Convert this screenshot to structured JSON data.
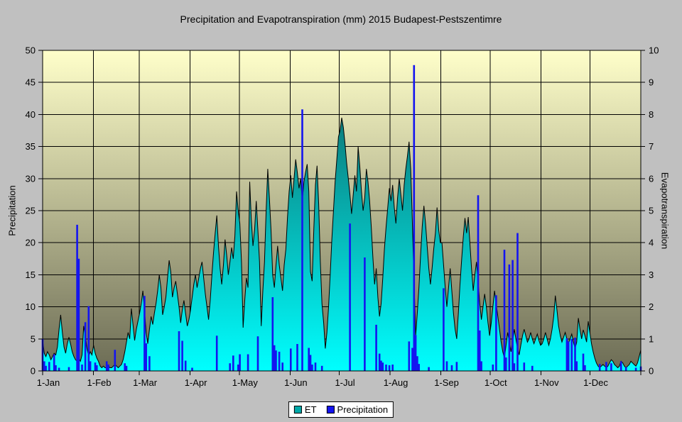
{
  "chart_data": {
    "type": "area+bar",
    "title": "Precipitation and Evapotranspiration (mm) 2015 Budapest-Pestszentimre",
    "left_axis": {
      "title": "Precipitation",
      "min": 0,
      "max": 50,
      "step": 5,
      "ticks": [
        0,
        5,
        10,
        15,
        20,
        25,
        30,
        35,
        40,
        45,
        50
      ]
    },
    "right_axis": {
      "title": "Evapotranspiration",
      "min": 0,
      "max": 10,
      "step": 1,
      "ticks": [
        0,
        1,
        2,
        3,
        4,
        5,
        6,
        7,
        8,
        9,
        10
      ]
    },
    "x_axis": {
      "labels": [
        "1-Jan",
        "1-Feb",
        "1-Mar",
        "1-Apr",
        "1-May",
        "1-Jun",
        "1-Jul",
        "1-Aug",
        "1-Sep",
        "1-Oct",
        "1-Nov",
        "1-Dec"
      ],
      "month_start_days": [
        0,
        31,
        59,
        90,
        120,
        151,
        181,
        212,
        243,
        273,
        304,
        334
      ],
      "days_in_year": 365
    },
    "legend": [
      {
        "label": "ET",
        "color": "#00a9a9"
      },
      {
        "label": "Precipitation",
        "color": "#1414f0"
      }
    ],
    "colors": {
      "page_bg": "#c0c0c0",
      "plot_bg_top": "#ffffca",
      "plot_bg_bottom": "#6c6c55",
      "grid": "#000000",
      "frame": "#000000",
      "et_fill_top": "#0f5a5a",
      "et_fill_bottom": "#00ffff",
      "et_outline": "#000000",
      "bar_fill": "#1414f0"
    },
    "series": [
      {
        "name": "ET",
        "axis": "right",
        "type": "area",
        "daily_values": [
          0.95,
          0.55,
          0.45,
          0.6,
          0.5,
          0.35,
          0.45,
          0.55,
          0.5,
          0.75,
          1.3,
          1.75,
          1.2,
          0.75,
          0.55,
          0.85,
          1.05,
          0.85,
          0.6,
          0.45,
          0.35,
          0.3,
          0.4,
          0.3,
          0.5,
          1.4,
          1.1,
          0.7,
          0.45,
          0.6,
          0.5,
          0.8,
          0.55,
          0.4,
          0.3,
          0.15,
          0.1,
          0.15,
          0.1,
          0.1,
          0.15,
          0.1,
          0.1,
          0.15,
          0.2,
          0.15,
          0.1,
          0.15,
          0.2,
          0.35,
          0.6,
          0.9,
          1.2,
          1.0,
          1.95,
          1.45,
          0.95,
          1.3,
          1.55,
          1.8,
          2.1,
          2.5,
          1.9,
          1.2,
          0.85,
          1.3,
          1.7,
          1.45,
          1.8,
          2.1,
          2.5,
          3.0,
          2.6,
          1.75,
          2.0,
          2.3,
          2.9,
          3.45,
          3.1,
          2.3,
          2.6,
          2.8,
          2.4,
          2.0,
          1.5,
          1.9,
          2.2,
          1.8,
          1.4,
          1.6,
          1.9,
          2.3,
          2.7,
          3.0,
          2.6,
          2.9,
          3.2,
          3.4,
          2.9,
          2.4,
          2.0,
          1.6,
          2.2,
          3.0,
          3.7,
          4.3,
          4.85,
          3.9,
          3.2,
          2.7,
          3.3,
          4.1,
          3.6,
          3.0,
          3.4,
          3.85,
          3.5,
          4.2,
          5.6,
          5.0,
          4.6,
          3.4,
          1.35,
          2.2,
          2.9,
          2.6,
          5.9,
          4.7,
          3.9,
          4.4,
          5.3,
          4.4,
          3.4,
          1.4,
          2.5,
          3.4,
          5.0,
          6.3,
          5.4,
          4.4,
          3.0,
          2.6,
          3.3,
          3.9,
          3.3,
          2.9,
          2.5,
          3.3,
          3.8,
          4.8,
          5.6,
          6.1,
          5.4,
          6.0,
          6.6,
          6.2,
          5.7,
          6.0,
          5.3,
          5.9,
          6.2,
          6.45,
          5.6,
          3.1,
          2.8,
          4.4,
          5.8,
          6.4,
          5.2,
          3.4,
          2.1,
          1.5,
          0.7,
          1.2,
          2.0,
          3.0,
          4.1,
          5.0,
          5.9,
          6.6,
          7.3,
          7.5,
          7.9,
          7.6,
          7.1,
          6.5,
          6.0,
          5.5,
          4.9,
          5.5,
          6.1,
          5.6,
          7.0,
          6.4,
          5.6,
          5.0,
          5.4,
          6.3,
          5.9,
          5.3,
          4.5,
          3.5,
          2.7,
          3.2,
          2.3,
          1.7,
          2.1,
          2.9,
          3.8,
          4.5,
          5.1,
          5.7,
          5.3,
          5.8,
          5.1,
          4.6,
          5.4,
          6.0,
          5.5,
          5.0,
          5.8,
          6.3,
          6.7,
          7.15,
          6.3,
          4.6,
          2.8,
          1.1,
          1.8,
          2.6,
          3.6,
          4.5,
          5.15,
          4.6,
          3.9,
          3.2,
          2.7,
          3.2,
          3.8,
          4.3,
          5.1,
          4.4,
          4.0,
          4.0,
          3.3,
          2.6,
          2.0,
          2.6,
          3.2,
          2.5,
          1.8,
          1.3,
          1.0,
          1.8,
          2.7,
          3.5,
          4.2,
          4.77,
          4.3,
          4.8,
          4.0,
          3.2,
          2.5,
          3.0,
          3.4,
          2.8,
          2.1,
          1.6,
          2.0,
          2.4,
          2.0,
          1.5,
          1.1,
          1.5,
          2.0,
          2.5,
          2.1,
          1.7,
          1.3,
          0.9,
          0.6,
          0.4,
          0.8,
          1.2,
          0.9,
          0.6,
          0.9,
          1.3,
          1.0,
          0.7,
          0.5,
          0.8,
          1.1,
          1.3,
          1.1,
          0.9,
          1.0,
          1.2,
          1.0,
          0.85,
          1.0,
          1.15,
          0.95,
          0.8,
          0.85,
          1.0,
          1.2,
          1.0,
          0.8,
          1.0,
          1.3,
          1.7,
          2.35,
          1.9,
          1.4,
          1.1,
          0.9,
          1.05,
          1.2,
          1.0,
          0.85,
          1.0,
          1.15,
          0.9,
          0.7,
          0.9,
          1.65,
          1.3,
          1.0,
          1.28,
          1.1,
          0.9,
          1.55,
          1.2,
          0.85,
          0.6,
          0.4,
          0.25,
          0.15,
          0.1,
          0.15,
          0.2,
          0.15,
          0.1,
          0.15,
          0.25,
          0.35,
          0.3,
          0.2,
          0.15,
          0.1,
          0.15,
          0.3,
          0.25,
          0.15,
          0.1,
          0.15,
          0.2,
          0.3,
          0.25,
          0.2,
          0.15,
          0.25,
          0.45,
          0.65
        ]
      },
      {
        "name": "Precipitation",
        "axis": "left",
        "type": "bar",
        "events": [
          {
            "day": 1,
            "value": 5.0
          },
          {
            "day": 2,
            "value": 1.5
          },
          {
            "day": 3,
            "value": 0.8
          },
          {
            "day": 5,
            "value": 1.4
          },
          {
            "day": 8,
            "value": 2.6
          },
          {
            "day": 9,
            "value": 0.9
          },
          {
            "day": 11,
            "value": 0.5
          },
          {
            "day": 17,
            "value": 0.6
          },
          {
            "day": 22,
            "value": 22.8
          },
          {
            "day": 23,
            "value": 17.5
          },
          {
            "day": 25,
            "value": 1.0
          },
          {
            "day": 27,
            "value": 7.6
          },
          {
            "day": 29,
            "value": 10.1
          },
          {
            "day": 30,
            "value": 1.5
          },
          {
            "day": 33,
            "value": 1.3
          },
          {
            "day": 34,
            "value": 0.9
          },
          {
            "day": 40,
            "value": 1.5
          },
          {
            "day": 41,
            "value": 1.0
          },
          {
            "day": 45,
            "value": 3.3
          },
          {
            "day": 51,
            "value": 1.2
          },
          {
            "day": 52,
            "value": 0.8
          },
          {
            "day": 63,
            "value": 11.7
          },
          {
            "day": 64,
            "value": 4.3
          },
          {
            "day": 66,
            "value": 2.3
          },
          {
            "day": 84,
            "value": 6.2
          },
          {
            "day": 86,
            "value": 4.7
          },
          {
            "day": 88,
            "value": 1.6
          },
          {
            "day": 92,
            "value": 0.5
          },
          {
            "day": 107,
            "value": 5.5
          },
          {
            "day": 115,
            "value": 1.2
          },
          {
            "day": 117,
            "value": 2.4
          },
          {
            "day": 120,
            "value": 1.0
          },
          {
            "day": 121,
            "value": 2.6
          },
          {
            "day": 126,
            "value": 2.6
          },
          {
            "day": 132,
            "value": 5.4
          },
          {
            "day": 141,
            "value": 11.5
          },
          {
            "day": 142,
            "value": 4.0
          },
          {
            "day": 143,
            "value": 3.2
          },
          {
            "day": 145,
            "value": 3.0
          },
          {
            "day": 147,
            "value": 1.3
          },
          {
            "day": 152,
            "value": 3.5
          },
          {
            "day": 156,
            "value": 4.2
          },
          {
            "day": 159,
            "value": 40.8
          },
          {
            "day": 163,
            "value": 3.6
          },
          {
            "day": 164,
            "value": 2.5
          },
          {
            "day": 165,
            "value": 1.0
          },
          {
            "day": 167,
            "value": 1.3
          },
          {
            "day": 171,
            "value": 0.8
          },
          {
            "day": 188,
            "value": 23.0
          },
          {
            "day": 197,
            "value": 17.7
          },
          {
            "day": 204,
            "value": 7.2
          },
          {
            "day": 206,
            "value": 2.7
          },
          {
            "day": 207,
            "value": 1.6
          },
          {
            "day": 208,
            "value": 1.3
          },
          {
            "day": 210,
            "value": 1.0
          },
          {
            "day": 212,
            "value": 0.9
          },
          {
            "day": 214,
            "value": 1.0
          },
          {
            "day": 224,
            "value": 4.6
          },
          {
            "day": 226,
            "value": 3.6
          },
          {
            "day": 227,
            "value": 47.7
          },
          {
            "day": 228,
            "value": 5.6
          },
          {
            "day": 229,
            "value": 2.3
          },
          {
            "day": 230,
            "value": 1.1
          },
          {
            "day": 236,
            "value": 0.6
          },
          {
            "day": 245,
            "value": 12.9
          },
          {
            "day": 247,
            "value": 1.5
          },
          {
            "day": 250,
            "value": 0.9
          },
          {
            "day": 253,
            "value": 1.4
          },
          {
            "day": 266,
            "value": 27.4
          },
          {
            "day": 267,
            "value": 6.3
          },
          {
            "day": 268,
            "value": 1.5
          },
          {
            "day": 275,
            "value": 1.0
          },
          {
            "day": 277,
            "value": 11.8
          },
          {
            "day": 282,
            "value": 18.9
          },
          {
            "day": 283,
            "value": 2.1
          },
          {
            "day": 285,
            "value": 16.6
          },
          {
            "day": 287,
            "value": 17.3
          },
          {
            "day": 288,
            "value": 1.2
          },
          {
            "day": 290,
            "value": 21.5
          },
          {
            "day": 294,
            "value": 1.3
          },
          {
            "day": 299,
            "value": 0.8
          },
          {
            "day": 320,
            "value": 5.1
          },
          {
            "day": 321,
            "value": 4.6
          },
          {
            "day": 323,
            "value": 5.0
          },
          {
            "day": 325,
            "value": 5.2
          },
          {
            "day": 326,
            "value": 1.5
          },
          {
            "day": 330,
            "value": 2.7
          },
          {
            "day": 331,
            "value": 0.9
          },
          {
            "day": 340,
            "value": 1.1
          },
          {
            "day": 344,
            "value": 1.4
          },
          {
            "day": 347,
            "value": 1.2
          },
          {
            "day": 353,
            "value": 1.5
          },
          {
            "day": 356,
            "value": 0.6
          },
          {
            "day": 362,
            "value": 0.5
          },
          {
            "day": 365,
            "value": 0.7
          }
        ]
      }
    ]
  }
}
